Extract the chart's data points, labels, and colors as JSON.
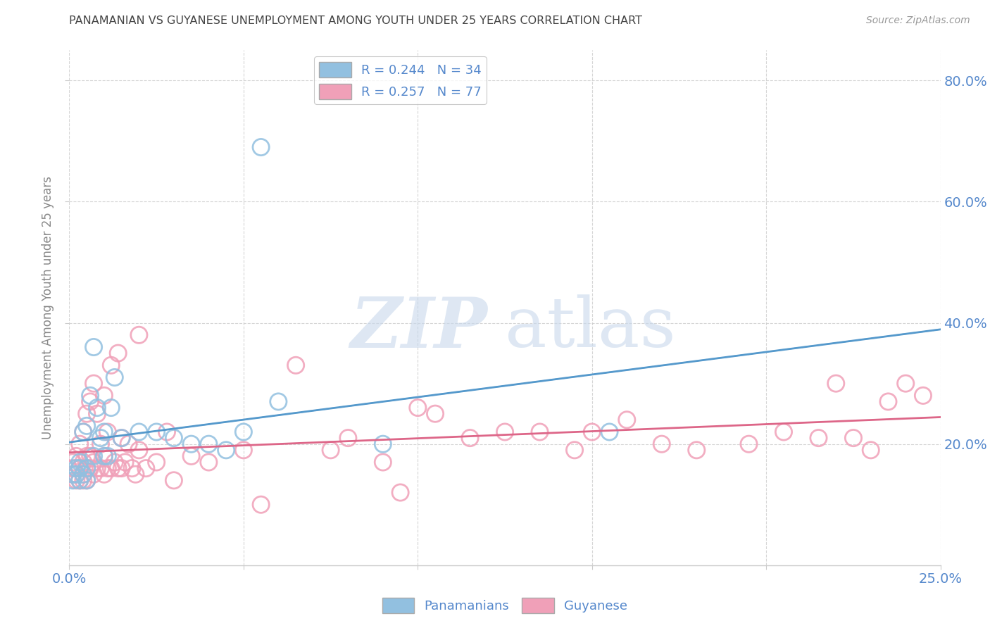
{
  "title": "PANAMANIAN VS GUYANESE UNEMPLOYMENT AMONG YOUTH UNDER 25 YEARS CORRELATION CHART",
  "source": "Source: ZipAtlas.com",
  "ylabel": "Unemployment Among Youth under 25 years",
  "xlim": [
    0.0,
    0.25
  ],
  "ylim": [
    0.0,
    0.85
  ],
  "xticks": [
    0.0,
    0.05,
    0.1,
    0.15,
    0.2,
    0.25
  ],
  "xtick_labels": [
    "0.0%",
    "",
    "",
    "",
    "",
    "25.0%"
  ],
  "right_yticks": [
    0.2,
    0.4,
    0.6,
    0.8
  ],
  "right_ytick_labels": [
    "20.0%",
    "40.0%",
    "60.0%",
    "80.0%"
  ],
  "panamanian_color": "#92c0e0",
  "guyanese_color": "#f0a0b8",
  "trend_panama_color": "#5599cc",
  "trend_guyana_color": "#dd6688",
  "trend_panama_dashed_color": "#aaccdd",
  "R_panama": 0.244,
  "N_panama": 34,
  "R_guyana": 0.257,
  "N_guyana": 77,
  "legend_label_panama": "Panamanians",
  "legend_label_guyana": "Guyanese",
  "background_color": "#ffffff",
  "grid_color": "#cccccc",
  "title_color": "#444444",
  "axis_label_color": "#5588cc",
  "ylabel_color": "#888888",
  "panama_x": [
    0.001,
    0.001,
    0.002,
    0.002,
    0.003,
    0.003,
    0.003,
    0.004,
    0.004,
    0.005,
    0.005,
    0.005,
    0.006,
    0.007,
    0.007,
    0.008,
    0.009,
    0.01,
    0.01,
    0.011,
    0.012,
    0.013,
    0.015,
    0.02,
    0.025,
    0.03,
    0.035,
    0.04,
    0.045,
    0.05,
    0.055,
    0.06,
    0.09,
    0.155
  ],
  "panama_y": [
    0.14,
    0.15,
    0.15,
    0.16,
    0.14,
    0.16,
    0.17,
    0.15,
    0.22,
    0.14,
    0.16,
    0.23,
    0.28,
    0.18,
    0.36,
    0.26,
    0.21,
    0.22,
    0.18,
    0.18,
    0.26,
    0.31,
    0.21,
    0.22,
    0.22,
    0.21,
    0.2,
    0.2,
    0.19,
    0.22,
    0.69,
    0.27,
    0.2,
    0.22
  ],
  "guyana_x": [
    0.001,
    0.001,
    0.001,
    0.002,
    0.002,
    0.002,
    0.003,
    0.003,
    0.003,
    0.004,
    0.004,
    0.004,
    0.004,
    0.005,
    0.005,
    0.005,
    0.005,
    0.006,
    0.006,
    0.006,
    0.007,
    0.007,
    0.007,
    0.008,
    0.008,
    0.009,
    0.009,
    0.01,
    0.01,
    0.01,
    0.011,
    0.011,
    0.012,
    0.012,
    0.013,
    0.014,
    0.014,
    0.015,
    0.015,
    0.016,
    0.017,
    0.018,
    0.019,
    0.02,
    0.02,
    0.022,
    0.025,
    0.028,
    0.03,
    0.035,
    0.04,
    0.05,
    0.055,
    0.065,
    0.075,
    0.08,
    0.09,
    0.095,
    0.1,
    0.105,
    0.115,
    0.125,
    0.135,
    0.145,
    0.15,
    0.16,
    0.17,
    0.18,
    0.195,
    0.205,
    0.215,
    0.22,
    0.225,
    0.23,
    0.235,
    0.24,
    0.245
  ],
  "guyana_y": [
    0.15,
    0.16,
    0.17,
    0.14,
    0.15,
    0.18,
    0.14,
    0.16,
    0.2,
    0.14,
    0.15,
    0.17,
    0.22,
    0.14,
    0.16,
    0.18,
    0.25,
    0.16,
    0.18,
    0.27,
    0.15,
    0.17,
    0.3,
    0.16,
    0.25,
    0.16,
    0.2,
    0.15,
    0.18,
    0.28,
    0.16,
    0.22,
    0.16,
    0.33,
    0.17,
    0.16,
    0.35,
    0.16,
    0.21,
    0.17,
    0.2,
    0.16,
    0.15,
    0.19,
    0.38,
    0.16,
    0.17,
    0.22,
    0.14,
    0.18,
    0.17,
    0.19,
    0.1,
    0.33,
    0.19,
    0.21,
    0.17,
    0.12,
    0.26,
    0.25,
    0.21,
    0.22,
    0.22,
    0.19,
    0.22,
    0.24,
    0.2,
    0.19,
    0.2,
    0.22,
    0.21,
    0.3,
    0.21,
    0.19,
    0.27,
    0.3,
    0.28
  ]
}
